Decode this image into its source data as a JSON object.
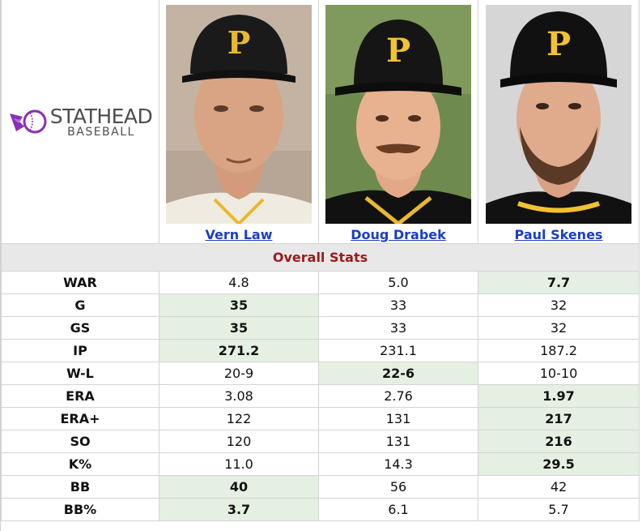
{
  "logo": {
    "main": "STATHEAD",
    "sub": "BASEBALL",
    "accent_color": "#8a2fb5"
  },
  "players": [
    {
      "name": "Vern Law",
      "cap_letter": "P",
      "photo_bg": "#c9b8a8"
    },
    {
      "name": "Doug Drabek",
      "cap_letter": "P",
      "photo_bg": "#6f8a4f"
    },
    {
      "name": "Paul Skenes",
      "cap_letter": "P",
      "photo_bg": "#d8d8d8"
    }
  ],
  "section_title": "Overall Stats",
  "highlight_color": "#e5efe2",
  "rows": [
    {
      "label": "WAR",
      "values": [
        "4.8",
        "5.0",
        "7.7"
      ],
      "best": 2
    },
    {
      "label": "G",
      "values": [
        "35",
        "33",
        "32"
      ],
      "best": 0
    },
    {
      "label": "GS",
      "values": [
        "35",
        "33",
        "32"
      ],
      "best": 0
    },
    {
      "label": "IP",
      "values": [
        "271.2",
        "231.1",
        "187.2"
      ],
      "best": 0
    },
    {
      "label": "W-L",
      "values": [
        "20-9",
        "22-6",
        "10-10"
      ],
      "best": 1
    },
    {
      "label": "ERA",
      "values": [
        "3.08",
        "2.76",
        "1.97"
      ],
      "best": 2
    },
    {
      "label": "ERA+",
      "values": [
        "122",
        "131",
        "217"
      ],
      "best": 2
    },
    {
      "label": "SO",
      "values": [
        "120",
        "131",
        "216"
      ],
      "best": 2
    },
    {
      "label": "K%",
      "values": [
        "11.0",
        "14.3",
        "29.5"
      ],
      "best": 2
    },
    {
      "label": "BB",
      "values": [
        "40",
        "56",
        "42"
      ],
      "best": 0
    },
    {
      "label": "BB%",
      "values": [
        "3.7",
        "6.1",
        "5.7"
      ],
      "best": 0
    }
  ]
}
